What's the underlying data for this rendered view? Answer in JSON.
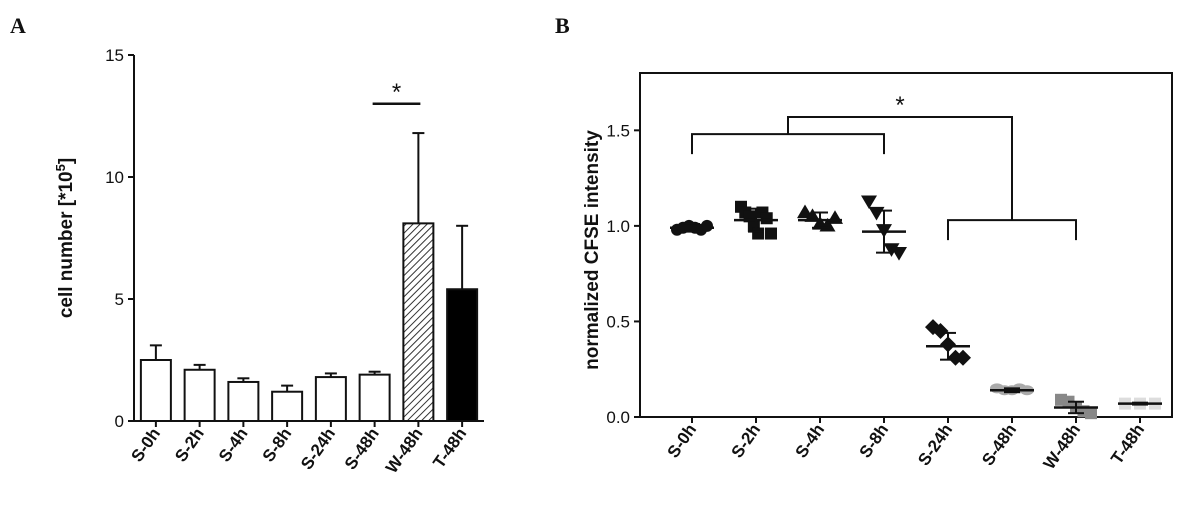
{
  "panels": {
    "a_label": "A",
    "b_label": "B"
  },
  "chart_data": [
    {
      "type": "bar",
      "panel": "A",
      "categories": [
        "S-0h",
        "S-2h",
        "S-4h",
        "S-8h",
        "S-24h",
        "S-48h",
        "W-48h",
        "T-48h"
      ],
      "values": [
        2.5,
        2.1,
        1.6,
        1.2,
        1.8,
        1.9,
        8.1,
        5.4
      ],
      "errors": [
        0.6,
        0.2,
        0.15,
        0.25,
        0.15,
        0.12,
        3.7,
        2.6
      ],
      "fills": [
        "white",
        "white",
        "white",
        "white",
        "white",
        "white",
        "hatched",
        "black"
      ],
      "ylabel": "cell number [*10",
      "ylabel_sup": "5",
      "ylabel_end": "]",
      "ylim": [
        0,
        15
      ],
      "yticks": [
        0,
        5,
        10,
        15
      ],
      "annotation": {
        "text": "*",
        "bracket": [
          "S-48h",
          "W-48h"
        ],
        "y": 13
      }
    },
    {
      "type": "scatter",
      "panel": "B",
      "categories": [
        "S-0h",
        "S-2h",
        "S-4h",
        "S-8h",
        "S-24h",
        "S-48h",
        "W-48h",
        "T-48h"
      ],
      "ylabel": "normalized CFSE intensity",
      "ylim": [
        0,
        1.8
      ],
      "yticks": [
        "0.0",
        "0.5",
        "1.0",
        "1.5"
      ],
      "series": [
        {
          "marker": "circle",
          "color": "#111111",
          "mean": 0.99,
          "sd": 0.02,
          "points": [
            0.98,
            0.99,
            1.0,
            0.99,
            0.98,
            1.0
          ]
        },
        {
          "marker": "square",
          "color": "#111111",
          "mean": 1.03,
          "sd": 0.06,
          "points": [
            1.1,
            1.07,
            1.05,
            1.0,
            0.96,
            1.07,
            1.04,
            0.96
          ]
        },
        {
          "marker": "triangle-up",
          "color": "#111111",
          "mean": 1.03,
          "sd": 0.04,
          "points": [
            1.07,
            1.05,
            1.01,
            1.0,
            1.04
          ]
        },
        {
          "marker": "triangle-down",
          "color": "#111111",
          "mean": 0.97,
          "sd": 0.11,
          "points": [
            1.13,
            1.07,
            0.98,
            0.88,
            0.86
          ]
        },
        {
          "marker": "diamond",
          "color": "#111111",
          "mean": 0.37,
          "sd": 0.07,
          "points": [
            0.47,
            0.45,
            0.38,
            0.31,
            0.31
          ]
        },
        {
          "marker": "hexagon",
          "color": "#aaaaaa",
          "mean": 0.14,
          "sd": 0.01,
          "points": [
            0.15,
            0.14,
            0.14,
            0.15,
            0.14
          ]
        },
        {
          "marker": "square",
          "color": "#888888",
          "mean": 0.05,
          "sd": 0.03,
          "points": [
            0.09,
            0.08,
            0.05,
            0.03,
            0.02
          ]
        },
        {
          "marker": "square",
          "color": "#dddddd",
          "mean": 0.07,
          "sd": 0.005,
          "points": [
            0.07,
            0.07,
            0.07
          ]
        }
      ],
      "annotation": {
        "text": "*",
        "group1": [
          "S-0h",
          "S-8h"
        ],
        "group1_y": 1.48,
        "group2": [
          "S-24h",
          "W-48h"
        ],
        "group2_y": 1.03,
        "top_y": 1.57
      }
    }
  ]
}
